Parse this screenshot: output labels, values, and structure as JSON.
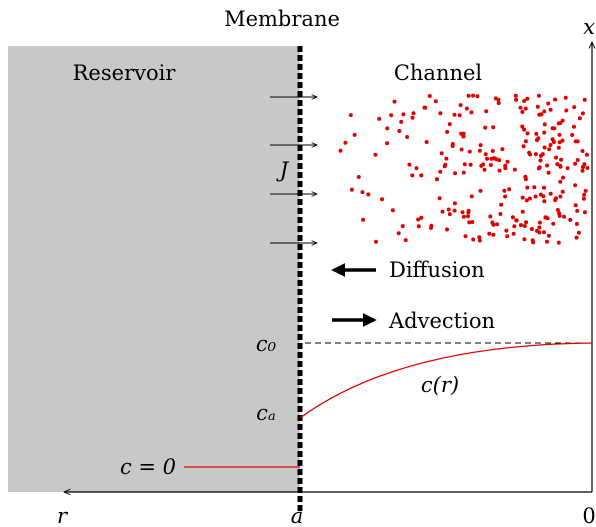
{
  "diagram": {
    "title": "Membrane",
    "regions": {
      "reservoir": "Reservoir",
      "channel": "Channel"
    },
    "axes": {
      "x_axis": "x",
      "r_axis": "r",
      "origin": "0",
      "membrane_position": "a"
    },
    "flux_label": "J",
    "legend": {
      "diffusion": "Diffusion",
      "advection": "Advection"
    },
    "concentrations": {
      "c0": "c₀",
      "ca": "cₐ",
      "zero": "c = 0",
      "profile": "c(r)"
    },
    "colors": {
      "reservoir_fill": "#c8c8c8",
      "particles": "#e00000",
      "profile_line": "#e00000",
      "membrane": "#000000"
    }
  }
}
